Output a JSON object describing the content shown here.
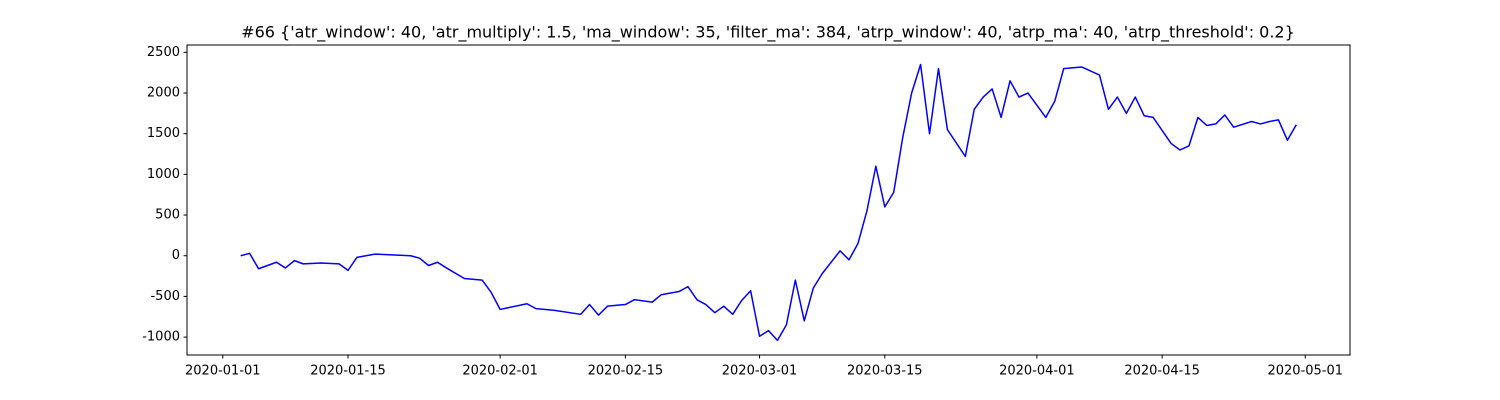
{
  "chart_data": {
    "type": "line",
    "title": "#66 {'atr_window': 40, 'atr_multiply': 1.5, 'ma_window': 35, 'filter_ma': 384, 'atrp_window': 40, 'atrp_ma': 40, 'atrp_threshold': 0.2}",
    "color": "#0000ff",
    "x": [
      "2020-01-03",
      "2020-01-04",
      "2020-01-05",
      "2020-01-07",
      "2020-01-08",
      "2020-01-09",
      "2020-01-10",
      "2020-01-12",
      "2020-01-14",
      "2020-01-15",
      "2020-01-16",
      "2020-01-17",
      "2020-01-18",
      "2020-01-22",
      "2020-01-23",
      "2020-01-24",
      "2020-01-25",
      "2020-01-26",
      "2020-01-28",
      "2020-01-30",
      "2020-01-31",
      "2020-02-01",
      "2020-02-04",
      "2020-02-05",
      "2020-02-07",
      "2020-02-10",
      "2020-02-11",
      "2020-02-12",
      "2020-02-13",
      "2020-02-15",
      "2020-02-16",
      "2020-02-18",
      "2020-02-19",
      "2020-02-21",
      "2020-02-22",
      "2020-02-23",
      "2020-02-24",
      "2020-02-25",
      "2020-02-26",
      "2020-02-27",
      "2020-02-28",
      "2020-02-29",
      "2020-03-01",
      "2020-03-02",
      "2020-03-03",
      "2020-03-04",
      "2020-03-05",
      "2020-03-06",
      "2020-03-07",
      "2020-03-08",
      "2020-03-10",
      "2020-03-11",
      "2020-03-12",
      "2020-03-13",
      "2020-03-14",
      "2020-03-15",
      "2020-03-16",
      "2020-03-17",
      "2020-03-18",
      "2020-03-19",
      "2020-03-20",
      "2020-03-21",
      "2020-03-22",
      "2020-03-24",
      "2020-03-25",
      "2020-03-26",
      "2020-03-27",
      "2020-03-28",
      "2020-03-29",
      "2020-03-30",
      "2020-03-31",
      "2020-04-01",
      "2020-04-02",
      "2020-04-03",
      "2020-04-04",
      "2020-04-06",
      "2020-04-08",
      "2020-04-09",
      "2020-04-10",
      "2020-04-11",
      "2020-04-12",
      "2020-04-13",
      "2020-04-14",
      "2020-04-16",
      "2020-04-17",
      "2020-04-18",
      "2020-04-19",
      "2020-04-20",
      "2020-04-21",
      "2020-04-22",
      "2020-04-23",
      "2020-04-25",
      "2020-04-26",
      "2020-04-27",
      "2020-04-28",
      "2020-04-29",
      "2020-04-30"
    ],
    "values": [
      0,
      30,
      -160,
      -80,
      -150,
      -60,
      -100,
      -90,
      -100,
      -180,
      -20,
      0,
      20,
      0,
      -30,
      -120,
      -80,
      -150,
      -280,
      -300,
      -450,
      -660,
      -590,
      -650,
      -670,
      -720,
      -600,
      -730,
      -620,
      -600,
      -540,
      -570,
      -480,
      -440,
      -380,
      -540,
      -600,
      -700,
      -620,
      -720,
      -550,
      -430,
      -990,
      -920,
      -1040,
      -850,
      -300,
      -800,
      -400,
      -220,
      60,
      -50,
      150,
      550,
      1100,
      600,
      780,
      1450,
      2000,
      2350,
      1500,
      2300,
      1550,
      1220,
      1800,
      1950,
      2050,
      1700,
      2150,
      1950,
      2000,
      1850,
      1700,
      1900,
      2300,
      2320,
      2220,
      1800,
      1950,
      1750,
      1950,
      1720,
      1700,
      1380,
      1300,
      1350,
      1700,
      1600,
      1620,
      1730,
      1580,
      1650,
      1620,
      1650,
      1670,
      1420,
      1610
    ],
    "xlim": [
      "2019-12-28",
      "2020-05-06"
    ],
    "xticks": [
      "2020-01-01",
      "2020-01-15",
      "2020-02-01",
      "2020-02-15",
      "2020-03-01",
      "2020-03-15",
      "2020-04-01",
      "2020-04-15",
      "2020-05-01"
    ],
    "ylim": [
      -1220,
      2590
    ],
    "yticks": [
      -1000,
      -500,
      0,
      500,
      1000,
      1500,
      2000,
      2500
    ]
  }
}
